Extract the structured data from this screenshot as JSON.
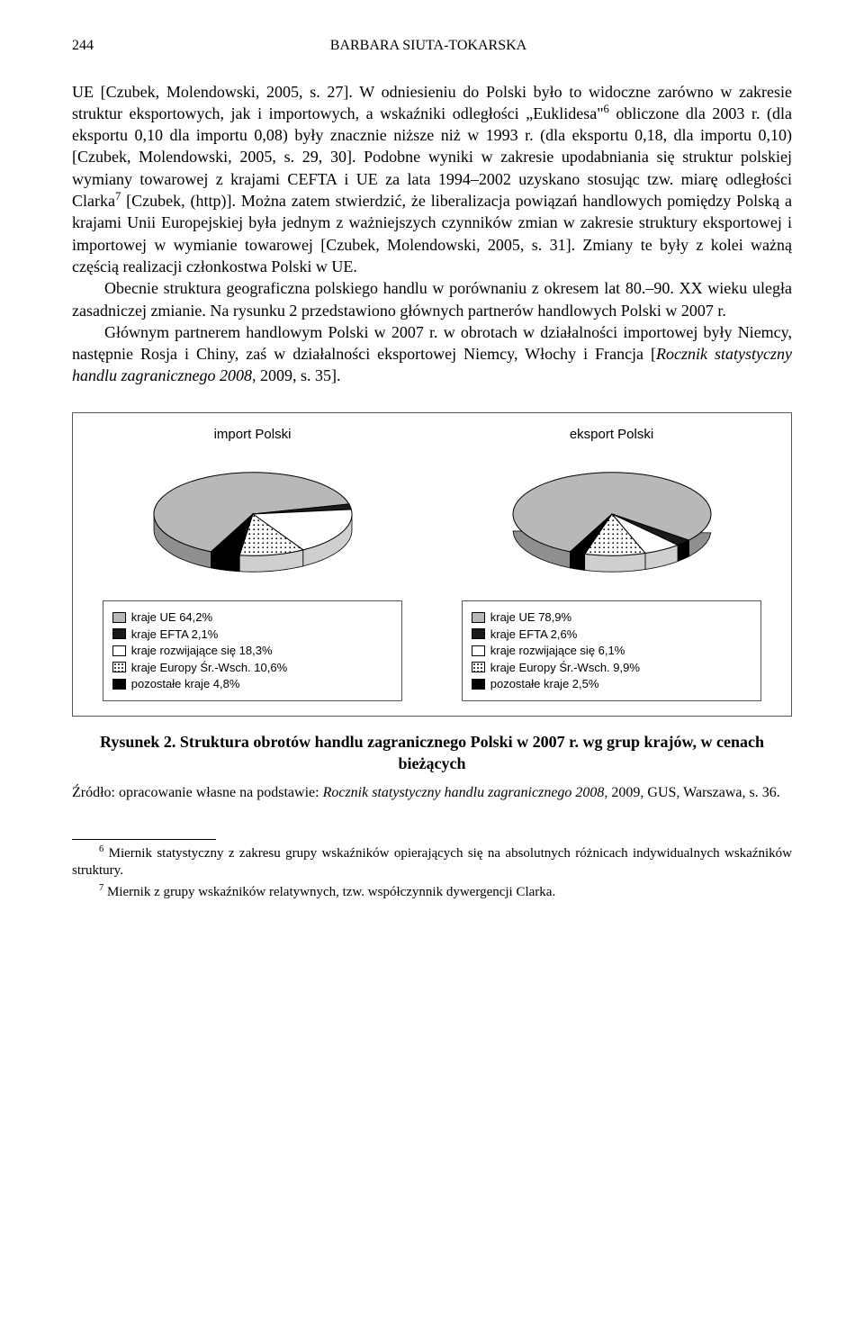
{
  "header": {
    "page_number": "244",
    "running_head": "BARBARA SIUTA-TOKARSKA"
  },
  "paragraphs": {
    "p1_a": "UE [Czubek, Molendowski, 2005, s. 27]. W odniesieniu do Polski było to widoczne zarówno w zakresie struktur eksportowych, jak i importowych, a wskaźniki odległości „Euklidesa\"",
    "p1_sup": "6",
    "p1_b": " obliczone dla 2003 r. (dla eksportu 0,10 dla importu 0,08) były znacznie niższe niż w 1993 r. (dla eksportu 0,18, dla importu 0,10) [Czubek, Molendowski, 2005, s. 29, 30]. Podobne wyniki w zakresie upodabniania się struktur polskiej wymiany towarowej z krajami CEFTA i UE za lata 1994–2002 uzyskano stosując tzw. miarę odległości Clarka",
    "p1_sup2": "7",
    "p1_c": " [Czubek, (http)]. Można zatem stwierdzić, że liberalizacja powiązań handlowych pomiędzy Polską a krajami Unii Europejskiej była jednym z ważniejszych czynników zmian w zakresie struktury eksportowej i importowej w wymianie towarowej [Czubek, Molendowski, 2005, s. 31]. Zmiany te były z kolei ważną częścią realizacji członkostwa Polski w UE.",
    "p2": "Obecnie struktura geograficzna polskiego handlu w porównaniu z okresem lat 80.–90. XX wieku uległa zasadniczej zmianie. Na rysunku 2 przedstawiono głównych partnerów handlowych Polski w 2007 r.",
    "p3_a": "Głównym partnerem handlowym Polski w 2007 r. w obrotach w działalności importowej były Niemcy, następnie Rosja i Chiny, zaś w działalności eksportowej Niemcy, Włochy i Francja [",
    "p3_ital": "Rocznik statystyczny handlu zagranicznego 2008",
    "p3_b": ", 2009, s. 35]."
  },
  "charts": {
    "import": {
      "title": "import Polski",
      "slices": [
        {
          "label": "kraje UE 64,2%",
          "value": 64.2,
          "fill": "#b8b8b8",
          "pattern": "none"
        },
        {
          "label": "kraje EFTA 2,1%",
          "value": 2.1,
          "fill": "#1a1a1a",
          "pattern": "none"
        },
        {
          "label": "kraje rozwijające się 18,3%",
          "value": 18.3,
          "fill": "#ffffff",
          "pattern": "none"
        },
        {
          "label": "kraje Europy Śr.-Wsch. 10,6%",
          "value": 10.6,
          "fill": "#ffffff",
          "pattern": "dots"
        },
        {
          "label": "pozostałe kraje 4,8%",
          "value": 4.8,
          "fill": "#000000",
          "pattern": "none"
        }
      ]
    },
    "export": {
      "title": "eksport Polski",
      "slices": [
        {
          "label": "kraje UE 78,9%",
          "value": 78.9,
          "fill": "#b8b8b8",
          "pattern": "none"
        },
        {
          "label": "kraje EFTA 2,6%",
          "value": 2.6,
          "fill": "#1a1a1a",
          "pattern": "none"
        },
        {
          "label": "kraje rozwijające się 6,1%",
          "value": 6.1,
          "fill": "#ffffff",
          "pattern": "none"
        },
        {
          "label": "kraje Europy Śr.-Wsch. 9,9%",
          "value": 9.9,
          "fill": "#ffffff",
          "pattern": "dots"
        },
        {
          "label": "pozostałe kraje 2,5%",
          "value": 2.5,
          "fill": "#000000",
          "pattern": "none"
        }
      ]
    },
    "stroke": "#000000",
    "tilt_ry_ratio": 0.42,
    "depth": 18
  },
  "figure_caption": "Rysunek 2. Struktura obrotów handlu zagranicznego Polski w 2007 r. wg grup krajów, w cenach bieżących",
  "source_a": "Źródło: opracowanie własne na podstawie: ",
  "source_ital": "Rocznik statystyczny handlu zagranicznego 2008",
  "source_b": ", 2009, GUS, Warszawa, s. 36.",
  "footnotes": {
    "f6_num": "6",
    "f6": " Miernik statystyczny z zakresu grupy wskaźników opierających się na absolutnych różnicach indywidualnych wskaźników struktury.",
    "f7_num": "7",
    "f7": " Miernik z grupy wskaźników relatywnych, tzw. współczynnik dywergencji Clarka."
  }
}
